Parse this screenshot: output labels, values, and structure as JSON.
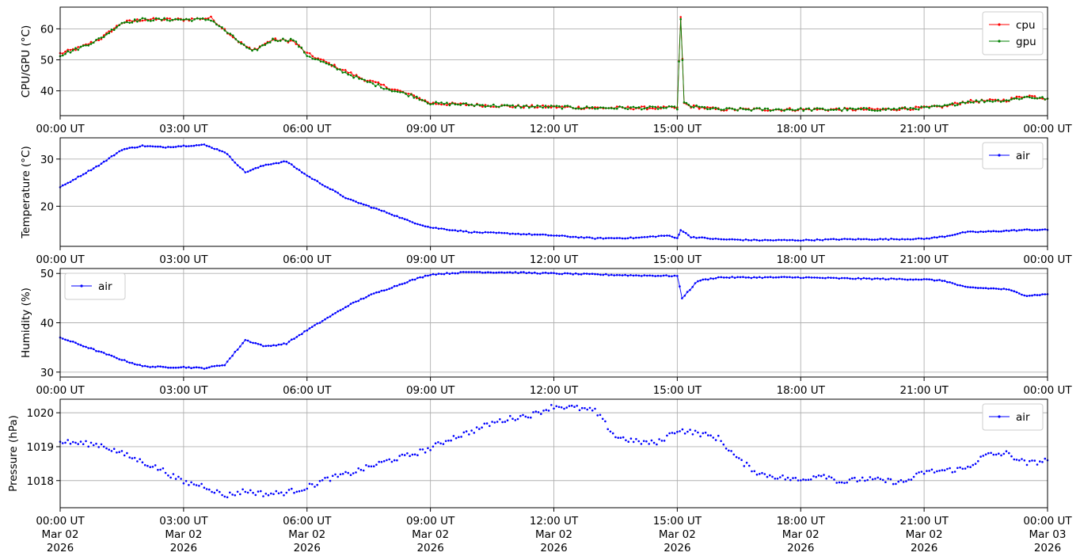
{
  "chart_data": [
    {
      "type": "line",
      "ylabel": "CPU/GPU (°C)",
      "ylim": [
        32,
        67
      ],
      "yticks": [
        40,
        50,
        60
      ],
      "xlim": [
        "2026-03-02T00:00",
        "2026-03-03T00:00"
      ],
      "xtick_labels": [
        "00:00 UT",
        "03:00 UT",
        "06:00 UT",
        "09:00 UT",
        "12:00 UT",
        "15:00 UT",
        "18:00 UT",
        "21:00 UT",
        "00:00 UT"
      ],
      "grid": true,
      "legend_position": "top-right",
      "series": [
        {
          "name": "cpu",
          "color": "#ff0000",
          "x": [
            "2026-03-02T00:00",
            "2026-03-02T00:30",
            "2026-03-02T01:00",
            "2026-03-02T01:30",
            "2026-03-02T02:00",
            "2026-03-02T03:00",
            "2026-03-02T03:40",
            "2026-03-02T04:20",
            "2026-03-02T04:40",
            "2026-03-02T05:10",
            "2026-03-02T05:40",
            "2026-03-02T06:00",
            "2026-03-02T06:40",
            "2026-03-02T07:20",
            "2026-03-02T08:00",
            "2026-03-02T08:40",
            "2026-03-02T09:00",
            "2026-03-02T10:00",
            "2026-03-02T11:00",
            "2026-03-02T12:00",
            "2026-03-02T13:00",
            "2026-03-02T14:00",
            "2026-03-02T15:00",
            "2026-03-02T15:05",
            "2026-03-02T15:10",
            "2026-03-02T15:20",
            "2026-03-02T16:00",
            "2026-03-02T17:00",
            "2026-03-02T18:00",
            "2026-03-02T19:00",
            "2026-03-02T20:00",
            "2026-03-02T21:00",
            "2026-03-02T21:30",
            "2026-03-02T22:00",
            "2026-03-02T23:00",
            "2026-03-02T23:30",
            "2026-03-03T00:00"
          ],
          "y": [
            52,
            54,
            57,
            62,
            63,
            63,
            63.5,
            56,
            53,
            56.5,
            56,
            52,
            48,
            44,
            41,
            38,
            36,
            35.5,
            35,
            34.8,
            34.5,
            34.5,
            34.5,
            64,
            36,
            35,
            34,
            34,
            34,
            34,
            34,
            34.5,
            35,
            36.5,
            37,
            38.5,
            37.5
          ]
        },
        {
          "name": "gpu",
          "color": "#008000",
          "x": [
            "2026-03-02T00:00",
            "2026-03-02T00:30",
            "2026-03-02T01:00",
            "2026-03-02T01:30",
            "2026-03-02T02:00",
            "2026-03-02T03:00",
            "2026-03-02T03:40",
            "2026-03-02T04:20",
            "2026-03-02T04:40",
            "2026-03-02T05:10",
            "2026-03-02T05:40",
            "2026-03-02T06:00",
            "2026-03-02T06:40",
            "2026-03-02T07:20",
            "2026-03-02T08:00",
            "2026-03-02T08:40",
            "2026-03-02T09:00",
            "2026-03-02T10:00",
            "2026-03-02T11:00",
            "2026-03-02T12:00",
            "2026-03-02T13:00",
            "2026-03-02T14:00",
            "2026-03-02T15:00",
            "2026-03-02T15:05",
            "2026-03-02T15:10",
            "2026-03-02T15:20",
            "2026-03-02T16:00",
            "2026-03-02T17:00",
            "2026-03-02T18:00",
            "2026-03-02T19:00",
            "2026-03-02T20:00",
            "2026-03-02T21:00",
            "2026-03-02T21:30",
            "2026-03-02T22:00",
            "2026-03-02T23:00",
            "2026-03-02T23:30",
            "2026-03-03T00:00"
          ],
          "y": [
            51.5,
            54,
            57,
            62,
            63,
            63,
            63,
            56,
            52.5,
            56.5,
            56.5,
            51.5,
            47.5,
            43.5,
            40.5,
            38,
            36,
            35.5,
            35,
            34.8,
            34.5,
            34.5,
            34.5,
            63.5,
            36,
            35,
            34,
            34,
            34,
            34,
            34,
            34.5,
            35,
            36.5,
            37,
            38,
            37.5
          ]
        }
      ]
    },
    {
      "type": "line",
      "ylabel": "Temperature (°C)",
      "ylim": [
        11.5,
        34.5
      ],
      "yticks": [
        20,
        30
      ],
      "xlim": [
        "2026-03-02T00:00",
        "2026-03-03T00:00"
      ],
      "xtick_labels": [
        "00:00 UT",
        "03:00 UT",
        "06:00 UT",
        "09:00 UT",
        "12:00 UT",
        "15:00 UT",
        "18:00 UT",
        "21:00 UT",
        "00:00 UT"
      ],
      "grid": true,
      "legend_position": "top-right",
      "series": [
        {
          "name": "air",
          "color": "#0000ff",
          "x": [
            "2026-03-02T00:00",
            "2026-03-02T00:30",
            "2026-03-02T01:00",
            "2026-03-02T01:30",
            "2026-03-02T02:00",
            "2026-03-02T02:30",
            "2026-03-02T03:00",
            "2026-03-02T03:30",
            "2026-03-02T04:00",
            "2026-03-02T04:30",
            "2026-03-02T05:00",
            "2026-03-02T05:30",
            "2026-03-02T06:00",
            "2026-03-02T06:30",
            "2026-03-02T07:00",
            "2026-03-02T07:30",
            "2026-03-02T08:00",
            "2026-03-02T08:30",
            "2026-03-02T09:00",
            "2026-03-02T10:00",
            "2026-03-02T11:00",
            "2026-03-02T12:00",
            "2026-03-02T13:00",
            "2026-03-02T14:00",
            "2026-03-02T14:45",
            "2026-03-02T15:00",
            "2026-03-02T15:05",
            "2026-03-02T15:20",
            "2026-03-02T16:00",
            "2026-03-02T17:00",
            "2026-03-02T18:00",
            "2026-03-02T19:00",
            "2026-03-02T20:00",
            "2026-03-02T21:00",
            "2026-03-02T21:30",
            "2026-03-02T22:00",
            "2026-03-02T22:30",
            "2026-03-02T23:00",
            "2026-03-02T23:30",
            "2026-03-03T00:00"
          ],
          "y": [
            24,
            26.5,
            29,
            32,
            32.8,
            32.5,
            32.8,
            33,
            31.5,
            27.2,
            28.8,
            29.5,
            26.5,
            24,
            21.5,
            20,
            18.5,
            16.8,
            15.5,
            14.5,
            14.2,
            13.8,
            13.2,
            13.3,
            13.8,
            13.2,
            15,
            13.5,
            13,
            12.8,
            12.8,
            13,
            13,
            13.1,
            13.6,
            14.5,
            14.6,
            14.8,
            15,
            15
          ]
        }
      ]
    },
    {
      "type": "line",
      "ylabel": "Humidity (%)",
      "ylim": [
        29,
        51
      ],
      "yticks": [
        30,
        40,
        50
      ],
      "xlim": [
        "2026-03-02T00:00",
        "2026-03-03T00:00"
      ],
      "xtick_labels": [
        "00:00 UT",
        "03:00 UT",
        "06:00 UT",
        "09:00 UT",
        "12:00 UT",
        "15:00 UT",
        "18:00 UT",
        "21:00 UT",
        "00:00 UT"
      ],
      "grid": true,
      "legend_position": "top-left",
      "series": [
        {
          "name": "air",
          "color": "#0000ff",
          "x": [
            "2026-03-02T00:00",
            "2026-03-02T00:30",
            "2026-03-02T01:00",
            "2026-03-02T01:30",
            "2026-03-02T02:00",
            "2026-03-02T02:30",
            "2026-03-02T03:00",
            "2026-03-02T03:30",
            "2026-03-02T04:00",
            "2026-03-02T04:30",
            "2026-03-02T05:00",
            "2026-03-02T05:30",
            "2026-03-02T06:00",
            "2026-03-02T06:30",
            "2026-03-02T07:00",
            "2026-03-02T07:30",
            "2026-03-02T08:00",
            "2026-03-02T08:30",
            "2026-03-02T09:00",
            "2026-03-02T10:00",
            "2026-03-02T11:00",
            "2026-03-02T12:00",
            "2026-03-02T13:00",
            "2026-03-02T14:00",
            "2026-03-02T15:00",
            "2026-03-02T15:07",
            "2026-03-02T15:30",
            "2026-03-02T16:00",
            "2026-03-02T17:00",
            "2026-03-02T18:00",
            "2026-03-02T19:00",
            "2026-03-02T20:00",
            "2026-03-02T21:00",
            "2026-03-02T21:30",
            "2026-03-02T22:00",
            "2026-03-02T22:30",
            "2026-03-02T23:00",
            "2026-03-02T23:30",
            "2026-03-03T00:00"
          ],
          "y": [
            37,
            35.5,
            34,
            32.5,
            31.2,
            31,
            31,
            30.8,
            31.5,
            36.5,
            35.2,
            35.8,
            38.5,
            41,
            43.5,
            45.5,
            47,
            48.5,
            49.8,
            50.3,
            50.2,
            50,
            49.8,
            49.6,
            49.5,
            45,
            48.5,
            49.2,
            49.2,
            49.2,
            49,
            48.9,
            48.8,
            48.5,
            47.2,
            47,
            46.8,
            45.5,
            45.8
          ]
        }
      ]
    },
    {
      "type": "scatter",
      "ylabel": "Pressure (hPa)",
      "ylim": [
        1017.2,
        1020.4
      ],
      "yticks": [
        1018,
        1019,
        1020
      ],
      "xlim": [
        "2026-03-02T00:00",
        "2026-03-03T00:00"
      ],
      "xtick_labels": [
        [
          "00:00 UT",
          "Mar 02",
          "2026"
        ],
        [
          "03:00 UT",
          "Mar 02",
          "2026"
        ],
        [
          "06:00 UT",
          "Mar 02",
          "2026"
        ],
        [
          "09:00 UT",
          "Mar 02",
          "2026"
        ],
        [
          "12:00 UT",
          "Mar 02",
          "2026"
        ],
        [
          "15:00 UT",
          "Mar 02",
          "2026"
        ],
        [
          "18:00 UT",
          "Mar 02",
          "2026"
        ],
        [
          "21:00 UT",
          "Mar 02",
          "2026"
        ],
        [
          "00:00 UT",
          "Mar 03",
          "2026"
        ]
      ],
      "grid": true,
      "legend_position": "top-right",
      "series": [
        {
          "name": "air",
          "color": "#0000ff",
          "x": [
            "2026-03-02T00:00",
            "2026-03-02T00:30",
            "2026-03-02T01:00",
            "2026-03-02T01:30",
            "2026-03-02T02:00",
            "2026-03-02T02:30",
            "2026-03-02T03:00",
            "2026-03-02T03:30",
            "2026-03-02T04:00",
            "2026-03-02T04:30",
            "2026-03-02T05:00",
            "2026-03-02T05:30",
            "2026-03-02T06:00",
            "2026-03-02T06:30",
            "2026-03-02T07:00",
            "2026-03-02T07:30",
            "2026-03-02T08:00",
            "2026-03-02T08:30",
            "2026-03-02T09:00",
            "2026-03-02T09:30",
            "2026-03-02T10:00",
            "2026-03-02T10:30",
            "2026-03-02T11:00",
            "2026-03-02T11:30",
            "2026-03-02T12:00",
            "2026-03-02T12:30",
            "2026-03-02T13:00",
            "2026-03-02T13:30",
            "2026-03-02T14:00",
            "2026-03-02T14:30",
            "2026-03-02T15:00",
            "2026-03-02T15:30",
            "2026-03-02T16:00",
            "2026-03-02T16:30",
            "2026-03-02T17:00",
            "2026-03-02T17:30",
            "2026-03-02T18:00",
            "2026-03-02T18:30",
            "2026-03-02T19:00",
            "2026-03-02T19:30",
            "2026-03-02T20:00",
            "2026-03-02T20:30",
            "2026-03-02T21:00",
            "2026-03-02T21:30",
            "2026-03-02T22:00",
            "2026-03-02T22:30",
            "2026-03-02T23:00",
            "2026-03-02T23:30",
            "2026-03-03T00:00"
          ],
          "y": [
            1019.15,
            1019.1,
            1019.05,
            1018.8,
            1018.55,
            1018.3,
            1017.95,
            1017.85,
            1017.55,
            1017.7,
            1017.6,
            1017.65,
            1017.8,
            1018.05,
            1018.2,
            1018.4,
            1018.6,
            1018.75,
            1018.95,
            1019.25,
            1019.45,
            1019.7,
            1019.85,
            1019.95,
            1020.2,
            1020.15,
            1020.05,
            1019.3,
            1019.15,
            1019.1,
            1019.5,
            1019.4,
            1019.25,
            1018.6,
            1018.2,
            1018.1,
            1018.0,
            1018.2,
            1017.95,
            1018.05,
            1018.0,
            1017.95,
            1018.25,
            1018.3,
            1018.35,
            1018.75,
            1018.8,
            1018.5,
            1018.6
          ]
        }
      ]
    }
  ]
}
